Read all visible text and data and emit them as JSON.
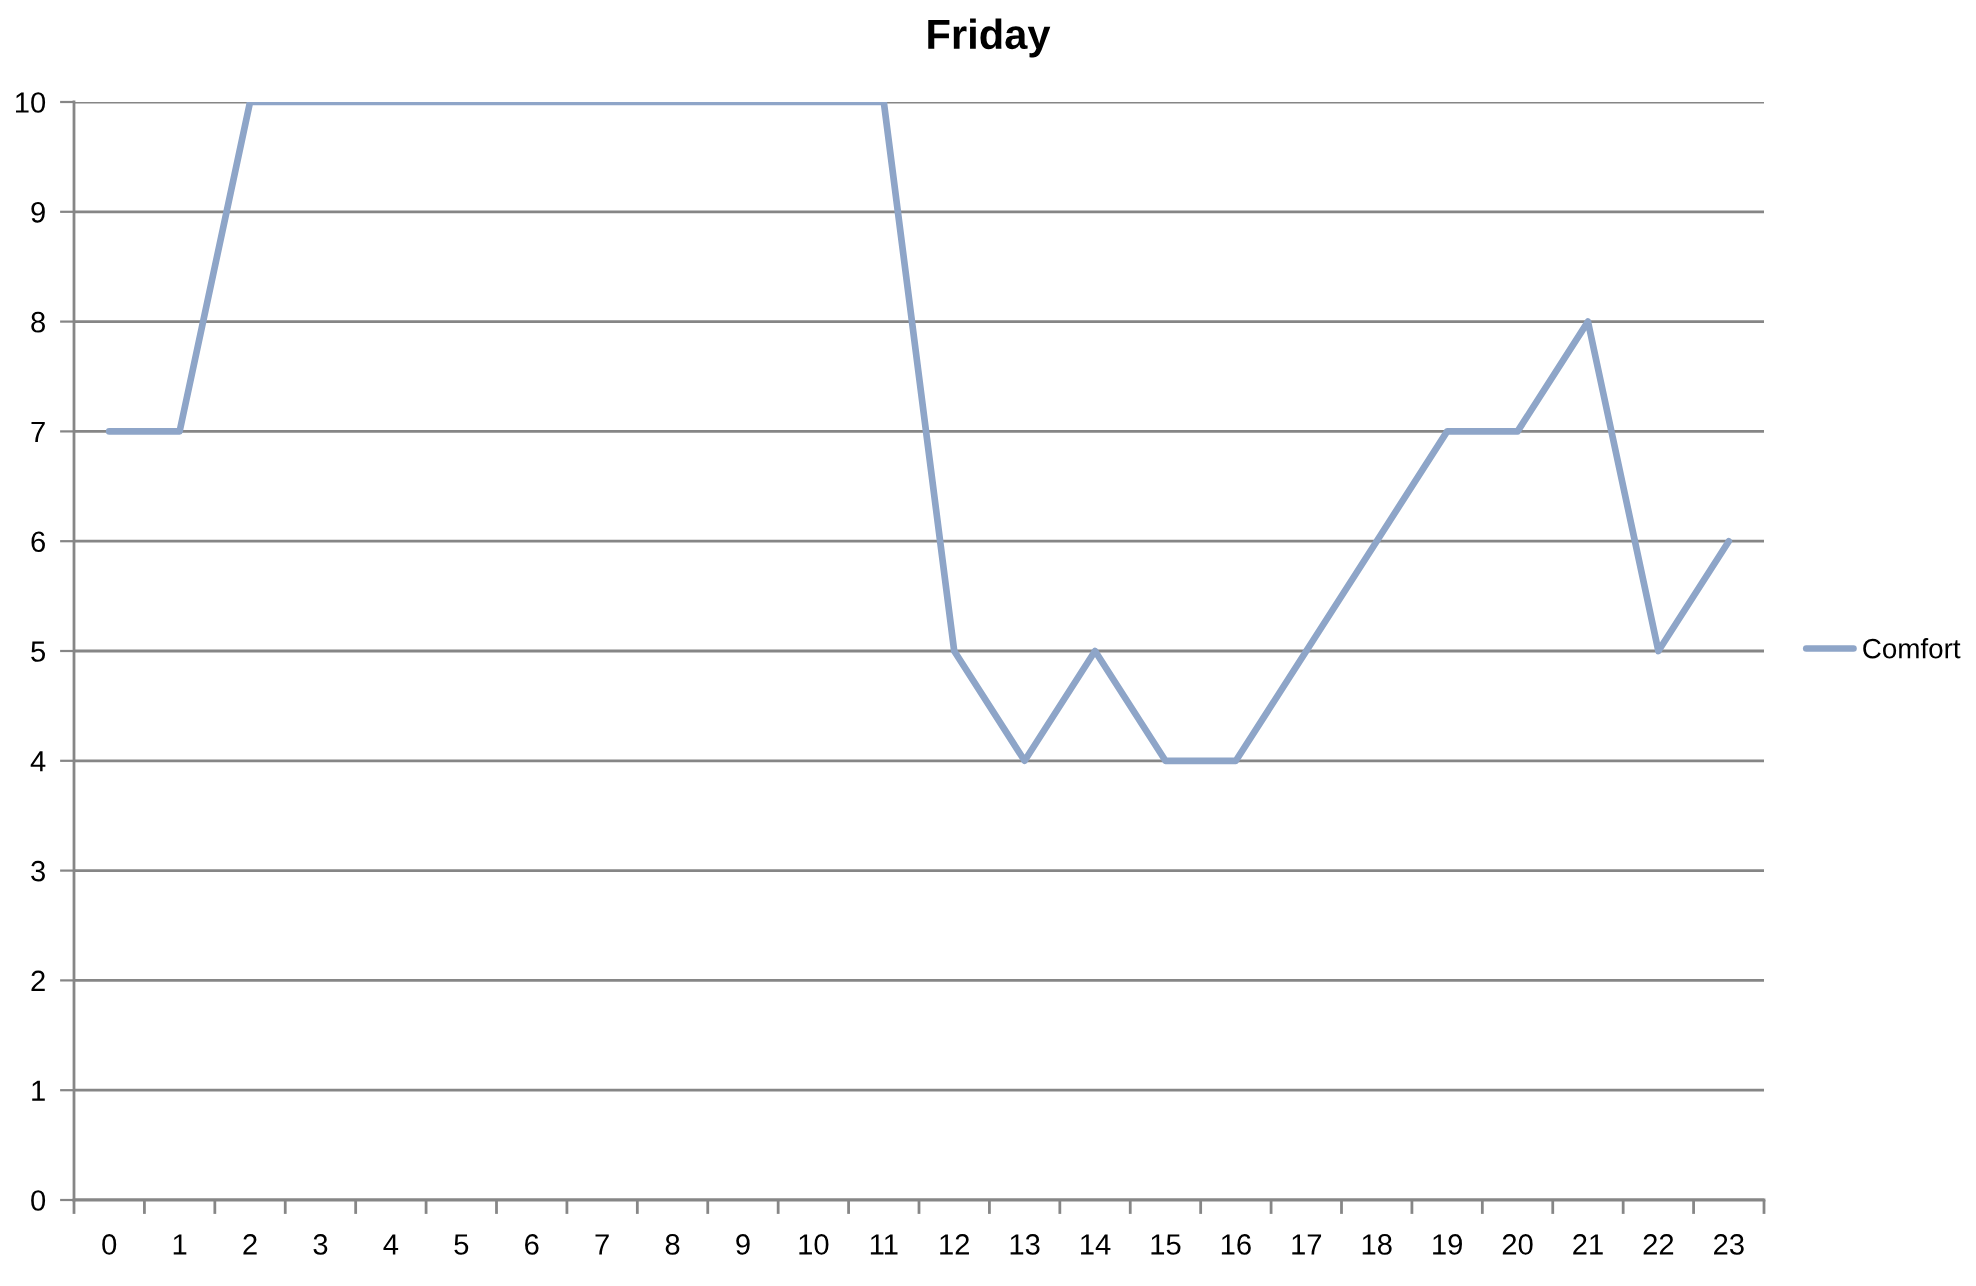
{
  "chart_data": {
    "type": "line",
    "title": "Friday",
    "categories": [
      "0",
      "1",
      "2",
      "3",
      "4",
      "5",
      "6",
      "7",
      "8",
      "9",
      "10",
      "11",
      "12",
      "13",
      "14",
      "15",
      "16",
      "17",
      "18",
      "19",
      "20",
      "21",
      "22",
      "23"
    ],
    "series": [
      {
        "name": "Comfort",
        "color": "#8ea5c8",
        "values": [
          7,
          7,
          10,
          10,
          10,
          10,
          10,
          10,
          10,
          10,
          10,
          10,
          5,
          4,
          5,
          4,
          4,
          5,
          6,
          7,
          7,
          8,
          5,
          6
        ]
      }
    ],
    "ylim": [
      0,
      10
    ],
    "yticks": [
      0,
      1,
      2,
      3,
      4,
      5,
      6,
      7,
      8,
      9,
      10
    ],
    "grid": "y",
    "legend": "right",
    "marker": "none",
    "line_style": "solid"
  }
}
